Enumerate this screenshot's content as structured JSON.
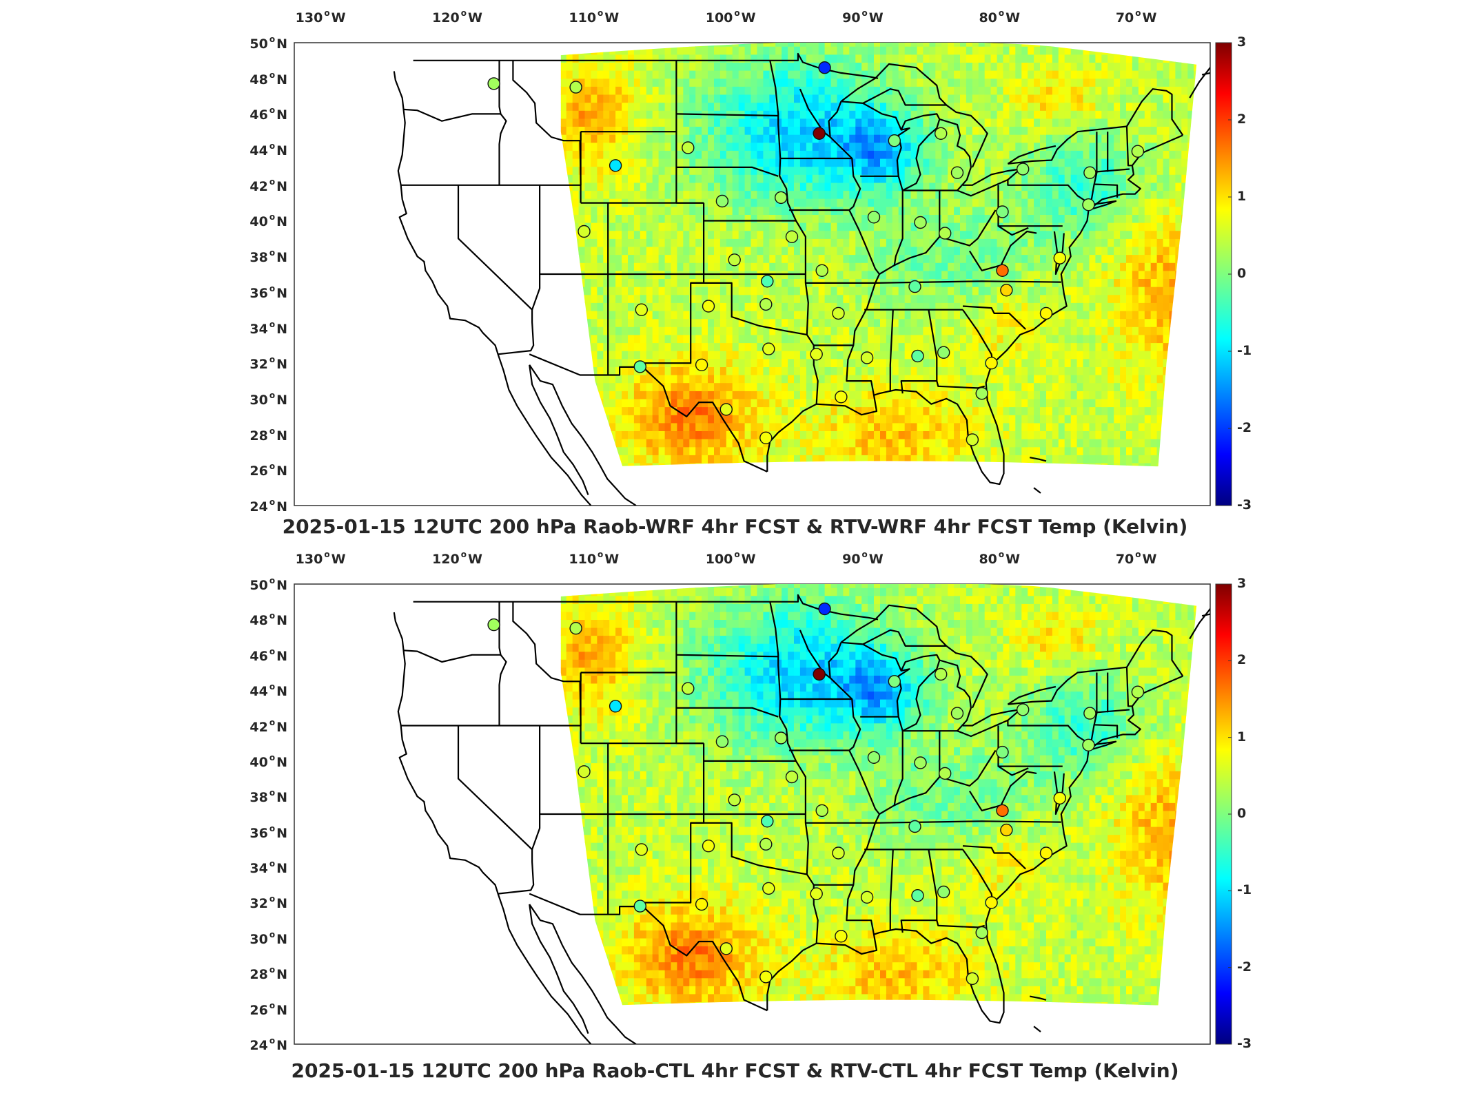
{
  "panels": [
    {
      "id": "wrf",
      "title": "2025-01-15 12UTC 200 hPa Raob-WRF 4hr FCST & RTV-WRF 4hr FCST Temp (Kelvin)"
    },
    {
      "id": "ctl",
      "title": "2025-01-15 12UTC 200 hPa Raob-CTL 4hr FCST & RTV-CTL 4hr FCST Temp (Kelvin)"
    }
  ],
  "map": {
    "lon_ticks": [
      {
        "value": -130,
        "num": "130",
        "hemi": "W"
      },
      {
        "value": -120,
        "num": "120",
        "hemi": "W"
      },
      {
        "value": -110,
        "num": "110",
        "hemi": "W"
      },
      {
        "value": -100,
        "num": "100",
        "hemi": "W"
      },
      {
        "value": -90,
        "num": "90",
        "hemi": "W"
      },
      {
        "value": -80,
        "num": "80",
        "hemi": "W"
      },
      {
        "value": -70,
        "num": "70",
        "hemi": "W"
      }
    ],
    "lat_ticks": [
      {
        "value": 50,
        "num": "50",
        "hemi": "N"
      },
      {
        "value": 48,
        "num": "48",
        "hemi": "N"
      },
      {
        "value": 46,
        "num": "46",
        "hemi": "N"
      },
      {
        "value": 44,
        "num": "44",
        "hemi": "N"
      },
      {
        "value": 42,
        "num": "42",
        "hemi": "N"
      },
      {
        "value": 40,
        "num": "40",
        "hemi": "N"
      },
      {
        "value": 38,
        "num": "38",
        "hemi": "N"
      },
      {
        "value": 36,
        "num": "36",
        "hemi": "N"
      },
      {
        "value": 34,
        "num": "34",
        "hemi": "N"
      },
      {
        "value": 32,
        "num": "32",
        "hemi": "N"
      },
      {
        "value": 30,
        "num": "30",
        "hemi": "N"
      },
      {
        "value": 28,
        "num": "28",
        "hemi": "N"
      },
      {
        "value": 26,
        "num": "26",
        "hemi": "N"
      },
      {
        "value": 24,
        "num": "24",
        "hemi": "N"
      }
    ],
    "lon_range": [
      -132,
      -65
    ],
    "lat_range": [
      24,
      50
    ],
    "colorbar": {
      "ticks": [
        {
          "value": 3,
          "label": "3"
        },
        {
          "value": 2,
          "label": "2"
        },
        {
          "value": 1,
          "label": "1"
        },
        {
          "value": 0,
          "label": "0"
        },
        {
          "value": -1,
          "label": "-1"
        },
        {
          "value": -2,
          "label": "-2"
        },
        {
          "value": -3,
          "label": "-3"
        }
      ],
      "colormap": "jet",
      "range": [
        -3,
        3
      ]
    },
    "stations": [
      {
        "lon": -117.4,
        "lat": 47.7,
        "v": 0.2
      },
      {
        "lon": -111.4,
        "lat": 47.5,
        "v": 0.3
      },
      {
        "lon": -93.2,
        "lat": 48.6,
        "v": -2.0
      },
      {
        "lon": -93.6,
        "lat": 44.9,
        "v": 3.0
      },
      {
        "lon": -88.1,
        "lat": 44.5,
        "v": 0.0
      },
      {
        "lon": -84.7,
        "lat": 44.9,
        "v": 0.3
      },
      {
        "lon": -103.2,
        "lat": 44.1,
        "v": 0.4
      },
      {
        "lon": -108.5,
        "lat": 43.1,
        "v": -0.9
      },
      {
        "lon": -83.5,
        "lat": 42.7,
        "v": 0.2
      },
      {
        "lon": -78.7,
        "lat": 42.9,
        "v": 0.1
      },
      {
        "lon": -73.8,
        "lat": 42.7,
        "v": 0.2
      },
      {
        "lon": -70.3,
        "lat": 43.9,
        "v": 0.3
      },
      {
        "lon": -100.7,
        "lat": 41.1,
        "v": 0.1
      },
      {
        "lon": -96.4,
        "lat": 41.3,
        "v": 0.2
      },
      {
        "lon": -89.6,
        "lat": 40.2,
        "v": 0.1
      },
      {
        "lon": -86.2,
        "lat": 39.9,
        "v": 0.2
      },
      {
        "lon": -80.2,
        "lat": 40.5,
        "v": 0.0
      },
      {
        "lon": -73.9,
        "lat": 40.9,
        "v": 0.2
      },
      {
        "lon": -110.8,
        "lat": 39.4,
        "v": 0.5
      },
      {
        "lon": -95.6,
        "lat": 39.1,
        "v": 0.4
      },
      {
        "lon": -84.4,
        "lat": 39.3,
        "v": 0.3
      },
      {
        "lon": -76.0,
        "lat": 37.9,
        "v": 0.7
      },
      {
        "lon": -99.8,
        "lat": 37.8,
        "v": 0.4
      },
      {
        "lon": -93.4,
        "lat": 37.2,
        "v": 0.3
      },
      {
        "lon": -97.4,
        "lat": 36.6,
        "v": -0.3
      },
      {
        "lon": -80.2,
        "lat": 37.2,
        "v": 1.6
      },
      {
        "lon": -86.6,
        "lat": 36.3,
        "v": -0.2
      },
      {
        "lon": -79.9,
        "lat": 36.1,
        "v": 1.0
      },
      {
        "lon": -106.6,
        "lat": 35.0,
        "v": 0.6
      },
      {
        "lon": -101.7,
        "lat": 35.2,
        "v": 0.7
      },
      {
        "lon": -97.5,
        "lat": 35.3,
        "v": 0.3
      },
      {
        "lon": -92.2,
        "lat": 34.8,
        "v": 0.5
      },
      {
        "lon": -77.0,
        "lat": 34.8,
        "v": 0.8
      },
      {
        "lon": -97.3,
        "lat": 32.8,
        "v": 0.6
      },
      {
        "lon": -93.8,
        "lat": 32.5,
        "v": 0.6
      },
      {
        "lon": -90.1,
        "lat": 32.3,
        "v": 0.5
      },
      {
        "lon": -86.4,
        "lat": 32.4,
        "v": -0.2
      },
      {
        "lon": -84.5,
        "lat": 32.6,
        "v": 0.1
      },
      {
        "lon": -81.0,
        "lat": 32.0,
        "v": 0.8
      },
      {
        "lon": -106.7,
        "lat": 31.8,
        "v": -0.2
      },
      {
        "lon": -102.2,
        "lat": 31.9,
        "v": 0.8
      },
      {
        "lon": -100.4,
        "lat": 29.4,
        "v": 0.6
      },
      {
        "lon": -92.0,
        "lat": 30.1,
        "v": 0.7
      },
      {
        "lon": -81.7,
        "lat": 30.3,
        "v": 0.2
      },
      {
        "lon": -97.5,
        "lat": 27.8,
        "v": 0.7
      },
      {
        "lon": -82.4,
        "lat": 27.7,
        "v": 0.5
      }
    ]
  }
}
